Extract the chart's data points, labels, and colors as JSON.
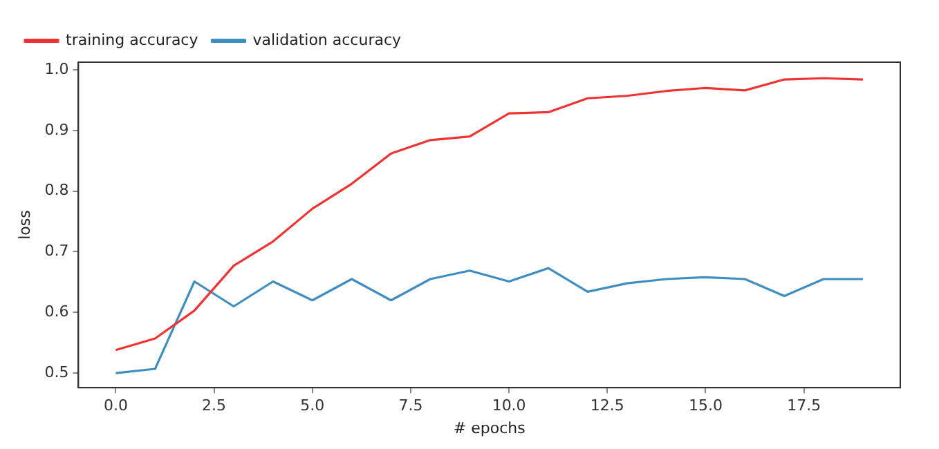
{
  "chart_data": {
    "type": "line",
    "xlabel": "# epochs",
    "ylabel": "loss",
    "x": [
      0,
      1,
      2,
      3,
      4,
      5,
      6,
      7,
      8,
      9,
      10,
      11,
      12,
      13,
      14,
      15,
      16,
      17,
      18,
      19
    ],
    "series": [
      {
        "name": "training accuracy",
        "color": "#ee3333",
        "values": [
          0.538,
          0.557,
          0.603,
          0.677,
          0.717,
          0.771,
          0.812,
          0.862,
          0.884,
          0.89,
          0.928,
          0.93,
          0.953,
          0.957,
          0.965,
          0.97,
          0.966,
          0.984,
          0.986,
          0.984
        ]
      },
      {
        "name": "validation accuracy",
        "color": "#3f8ec2",
        "values": [
          0.5,
          0.507,
          0.651,
          0.61,
          0.651,
          0.62,
          0.655,
          0.62,
          0.655,
          0.669,
          0.651,
          0.673,
          0.634,
          0.648,
          0.655,
          0.658,
          0.655,
          0.627,
          0.655,
          0.655
        ]
      }
    ],
    "xlim": [
      -0.95,
      19.95
    ],
    "xticks": [
      {
        "value": 0,
        "label": "0.0"
      },
      {
        "value": 2.5,
        "label": "2.5"
      },
      {
        "value": 5,
        "label": "5.0"
      },
      {
        "value": 7.5,
        "label": "7.5"
      },
      {
        "value": 10,
        "label": "10.0"
      },
      {
        "value": 12.5,
        "label": "12.5"
      },
      {
        "value": 15,
        "label": "15.0"
      },
      {
        "value": 17.5,
        "label": "17.5"
      }
    ],
    "ylim": [
      0.476,
      1.0125
    ],
    "yticks": [
      {
        "value": 0.5,
        "label": "0.5"
      },
      {
        "value": 0.6,
        "label": "0.6"
      },
      {
        "value": 0.7,
        "label": "0.7"
      },
      {
        "value": 0.8,
        "label": "0.8"
      },
      {
        "value": 0.9,
        "label": "0.9"
      },
      {
        "value": 1,
        "label": "1.0"
      }
    ],
    "grid": false,
    "legend": "top left",
    "marker": "none",
    "line_style": "solid"
  }
}
